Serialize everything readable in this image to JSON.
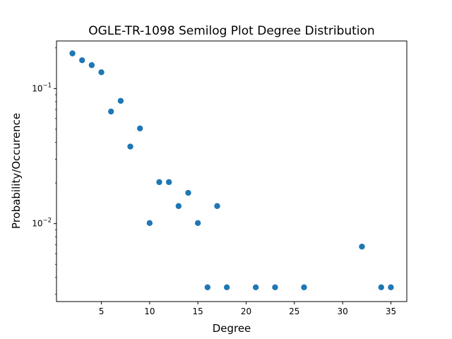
{
  "chart_data": {
    "type": "scatter",
    "title": "OGLE-TR-1098 Semilog Plot Degree Distribution",
    "xlabel": "Degree",
    "ylabel": "Probability/Occurence",
    "yscale": "log",
    "xlim": [
      0.35,
      36.65
    ],
    "ylim": [
      0.00265,
      0.225
    ],
    "grid": false,
    "marker_color": "#1f77b4",
    "x_ticks": [
      {
        "value": 5,
        "label": "5"
      },
      {
        "value": 10,
        "label": "10"
      },
      {
        "value": 15,
        "label": "15"
      },
      {
        "value": 20,
        "label": "20"
      },
      {
        "value": 25,
        "label": "25"
      },
      {
        "value": 30,
        "label": "30"
      },
      {
        "value": 35,
        "label": "35"
      }
    ],
    "y_ticks": [
      {
        "value": 0.1,
        "base": "10",
        "exp": "−1"
      },
      {
        "value": 0.01,
        "base": "10",
        "exp": "−2"
      }
    ],
    "points": [
      {
        "x": 2,
        "y": 0.182
      },
      {
        "x": 3,
        "y": 0.162
      },
      {
        "x": 4,
        "y": 0.149
      },
      {
        "x": 5,
        "y": 0.132
      },
      {
        "x": 6,
        "y": 0.0676
      },
      {
        "x": 7,
        "y": 0.0811
      },
      {
        "x": 8,
        "y": 0.0372
      },
      {
        "x": 9,
        "y": 0.0507
      },
      {
        "x": 10,
        "y": 0.0101
      },
      {
        "x": 11,
        "y": 0.0203
      },
      {
        "x": 12,
        "y": 0.0203
      },
      {
        "x": 13,
        "y": 0.0135
      },
      {
        "x": 14,
        "y": 0.0169
      },
      {
        "x": 15,
        "y": 0.0101
      },
      {
        "x": 16,
        "y": 0.00338
      },
      {
        "x": 17,
        "y": 0.0135
      },
      {
        "x": 18,
        "y": 0.00338
      },
      {
        "x": 21,
        "y": 0.00338
      },
      {
        "x": 23,
        "y": 0.00338
      },
      {
        "x": 26,
        "y": 0.00338
      },
      {
        "x": 32,
        "y": 0.00676
      },
      {
        "x": 34,
        "y": 0.00338
      },
      {
        "x": 35,
        "y": 0.00338
      }
    ]
  }
}
